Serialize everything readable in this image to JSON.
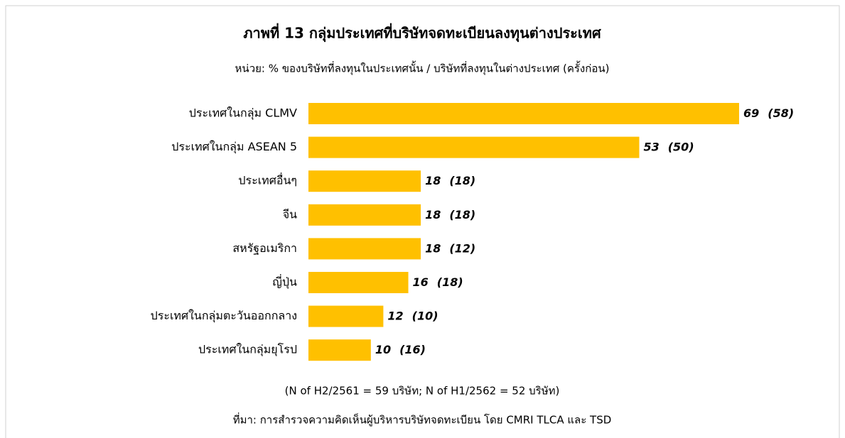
{
  "chart_data": {
    "type": "barh",
    "title": "ภาพที่ 13 กลุ่มประเทศที่บริษัทจดทะเบียนลงทุนต่างประเทศ",
    "subtitle": "หน่วย: % ของบริษัทที่ลงทุนในประเทศนั้น / บริษัทที่ลงทุนในต่างประเทศ (ครั้งก่อน)",
    "categories": [
      "ประเทศในกลุ่ม CLMV",
      "ประเทศในกลุ่ม ASEAN 5",
      "ประเทศอื่นๆ",
      "จีน",
      "สหรัฐอเมริกา",
      "ญี่ปุ่น",
      "ประเทศในกลุ่มตะวันออกกลาง",
      "ประเทศในกลุ่มยุโรป"
    ],
    "values": [
      69,
      53,
      18,
      18,
      18,
      16,
      12,
      10
    ],
    "previous_value_labels": [
      "(58)",
      "(50)",
      "(18)",
      "(18)",
      "(12)",
      "(18)",
      "(10)",
      "(16)"
    ],
    "color": "#ffc000",
    "xlim": [
      0,
      69
    ],
    "note": "(N of H2/2561 = 59 บริษัท; N of H1/2562 = 52 บริษัท)",
    "source": "ที่มา: การสำรวจความคิดเห็นผู้บริหารบริษัทจดทะเบียน  โดย CMRI TLCA และ TSD"
  }
}
